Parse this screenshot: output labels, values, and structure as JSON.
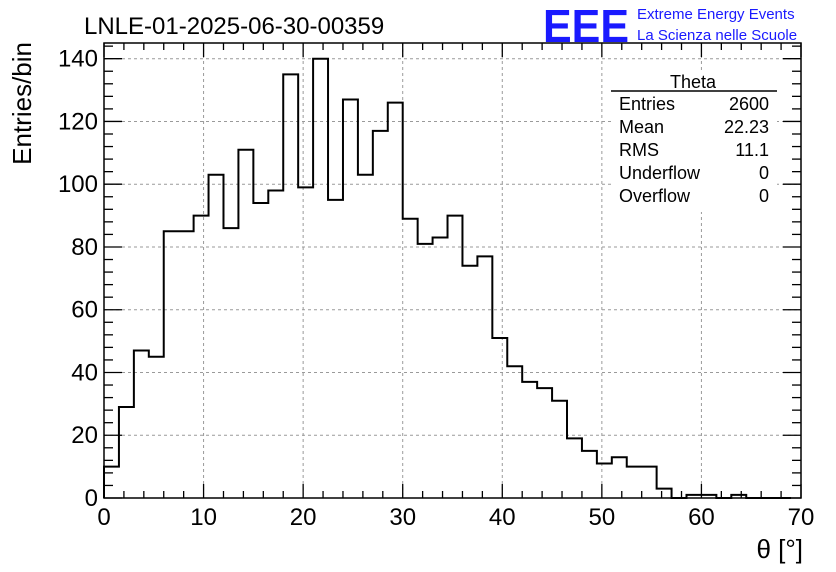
{
  "chart_data": {
    "type": "bar",
    "title": "LNLE-01-2025-06-30-00359",
    "xlabel": "θ [°]",
    "ylabel": "Entries/bin",
    "xlim": [
      0,
      70
    ],
    "ylim": [
      0,
      145
    ],
    "xticks": [
      0,
      10,
      20,
      30,
      40,
      50,
      60,
      70
    ],
    "yticks": [
      0,
      20,
      40,
      60,
      80,
      100,
      120,
      140
    ],
    "bin_width": 1.5,
    "bin_start": 0,
    "grid": true,
    "series": [
      {
        "values": [
          10,
          29,
          47,
          45,
          85,
          85,
          90,
          103,
          86,
          111,
          94,
          98,
          135,
          99,
          140,
          95,
          127,
          103,
          117,
          126,
          89,
          81,
          83,
          90,
          74,
          77,
          51,
          42,
          37,
          35,
          31,
          19,
          15,
          11,
          13,
          10,
          10,
          3,
          0,
          1,
          1,
          0,
          1,
          0,
          0,
          0
        ]
      }
    ],
    "stats_box": {
      "title": "Theta",
      "rows": [
        {
          "label": "Entries",
          "value": "2600"
        },
        {
          "label": "Mean",
          "value": "22.23"
        },
        {
          "label": "RMS",
          "value": "11.1"
        },
        {
          "label": "Underflow",
          "value": "0"
        },
        {
          "label": "Overflow",
          "value": "0"
        }
      ],
      "placement": "top-right"
    },
    "colors": {
      "line": "#000000",
      "grid": "#9a9a9a",
      "logo": "#1a1aff"
    }
  },
  "logo": {
    "mark": "EEE",
    "line1": "Extreme Energy Events",
    "line2": "La Scienza nelle Scuole"
  }
}
